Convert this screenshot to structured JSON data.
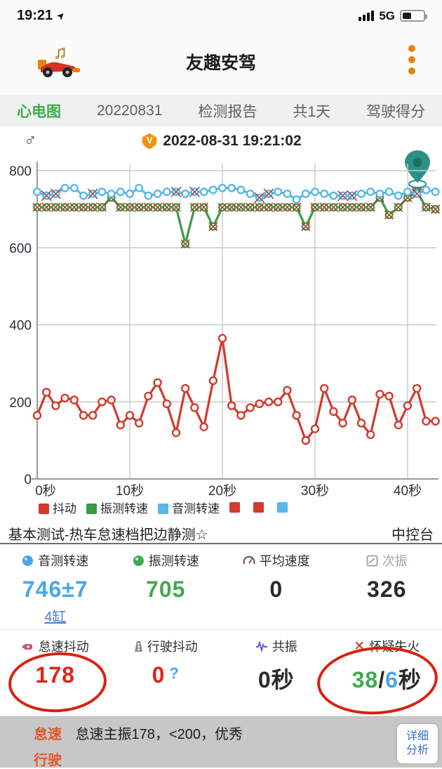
{
  "colors": {
    "accent_red": "#d23a2e",
    "accent_green": "#3c9a45",
    "accent_blue": "#58b7e8",
    "value_blue": "#49a5ea",
    "value_green": "#3faa4f",
    "value_red": "#e0251a",
    "orange": "#e8820c",
    "link_blue": "#4a7fd6",
    "footer_orange": "#e2572e",
    "button_blue": "#3a6fd0",
    "pin_teal": "#2a9186",
    "badge_orange": "#f0920f"
  },
  "status_bar": {
    "time": "19:21",
    "network": "5G"
  },
  "header": {
    "title": "友趣安驾"
  },
  "tabs": [
    {
      "label": "心电图"
    },
    {
      "label": "20220831"
    },
    {
      "label": "检测报告"
    },
    {
      "label": "共1天"
    },
    {
      "label": "驾驶得分"
    }
  ],
  "chart_meta": {
    "gender_symbol": "♂",
    "badge_letter": "V",
    "timestamp": "2022-08-31 19:21:02"
  },
  "chart_data": {
    "type": "line",
    "title": "",
    "xlabel": "秒",
    "ylabel": "",
    "x_ticks": [
      "0秒",
      "10秒",
      "20秒",
      "30秒",
      "40秒"
    ],
    "x_tick_seconds": [
      0,
      10,
      20,
      30,
      40
    ],
    "y_ticks": [
      0,
      200,
      400,
      600,
      800
    ],
    "ylim": [
      0,
      800
    ],
    "grid": true,
    "legend_position": "bottom",
    "seconds_step": 1,
    "series": [
      {
        "name": "抖动",
        "color": "#d23a2e",
        "marker": "circle",
        "values": [
          165,
          225,
          190,
          210,
          205,
          165,
          165,
          200,
          205,
          140,
          165,
          145,
          215,
          250,
          195,
          120,
          235,
          185,
          135,
          255,
          365,
          190,
          165,
          185,
          195,
          200,
          200,
          230,
          165,
          100,
          130,
          235,
          175,
          145,
          205,
          145,
          115,
          220,
          215,
          140,
          190,
          235,
          150,
          150
        ]
      },
      {
        "name": "振测转速",
        "color": "#3c9a45",
        "marker": "circle-x",
        "values": [
          705,
          705,
          705,
          705,
          705,
          705,
          705,
          705,
          730,
          705,
          705,
          705,
          705,
          705,
          705,
          705,
          610,
          705,
          705,
          655,
          705,
          705,
          705,
          705,
          705,
          705,
          705,
          705,
          705,
          655,
          705,
          705,
          705,
          705,
          705,
          705,
          705,
          730,
          685,
          705,
          730,
          745,
          705,
          700
        ]
      },
      {
        "name": "音测转速",
        "color": "#58b7e8",
        "marker": "circle",
        "x_marker_indices": [
          1,
          2,
          6,
          15,
          17,
          24,
          25,
          33,
          34,
          41
        ],
        "values": [
          745,
          735,
          740,
          755,
          755,
          735,
          740,
          745,
          740,
          745,
          740,
          755,
          735,
          740,
          745,
          745,
          740,
          745,
          745,
          750,
          755,
          755,
          750,
          740,
          730,
          740,
          745,
          740,
          725,
          740,
          745,
          740,
          735,
          735,
          735,
          740,
          745,
          740,
          745,
          735,
          745,
          740,
          750,
          745
        ]
      }
    ],
    "legend_extra_swatches": [
      "#d23a2e",
      "#d23a2e",
      "#58b7e8"
    ]
  },
  "section": {
    "title": "基本测试-热车怠速档把边静测☆",
    "location": "中控台"
  },
  "stats_row1": [
    {
      "label": "音测转速",
      "value": "746±7"
    },
    {
      "label": "振测转速",
      "value": "705"
    },
    {
      "label": "平均速度",
      "value": "0"
    },
    {
      "label": "次振",
      "value": "326"
    }
  ],
  "cylinder_link": "4缸",
  "stats_row2": [
    {
      "label": "怠速抖动",
      "value": "178"
    },
    {
      "label": "行驶抖动",
      "value": "0",
      "help": "?"
    },
    {
      "label": "共振",
      "value": "0秒"
    },
    {
      "label": "怀疑失火",
      "parts": {
        "a": "38",
        "slash": "/",
        "b": "6",
        "unit": "秒"
      }
    }
  ],
  "footer": {
    "idle_label": "怠速",
    "idle_text": "怠速主振178，<200，优秀",
    "drive_label": "行驶",
    "detail_line1": "详细",
    "detail_line2": "分析"
  }
}
